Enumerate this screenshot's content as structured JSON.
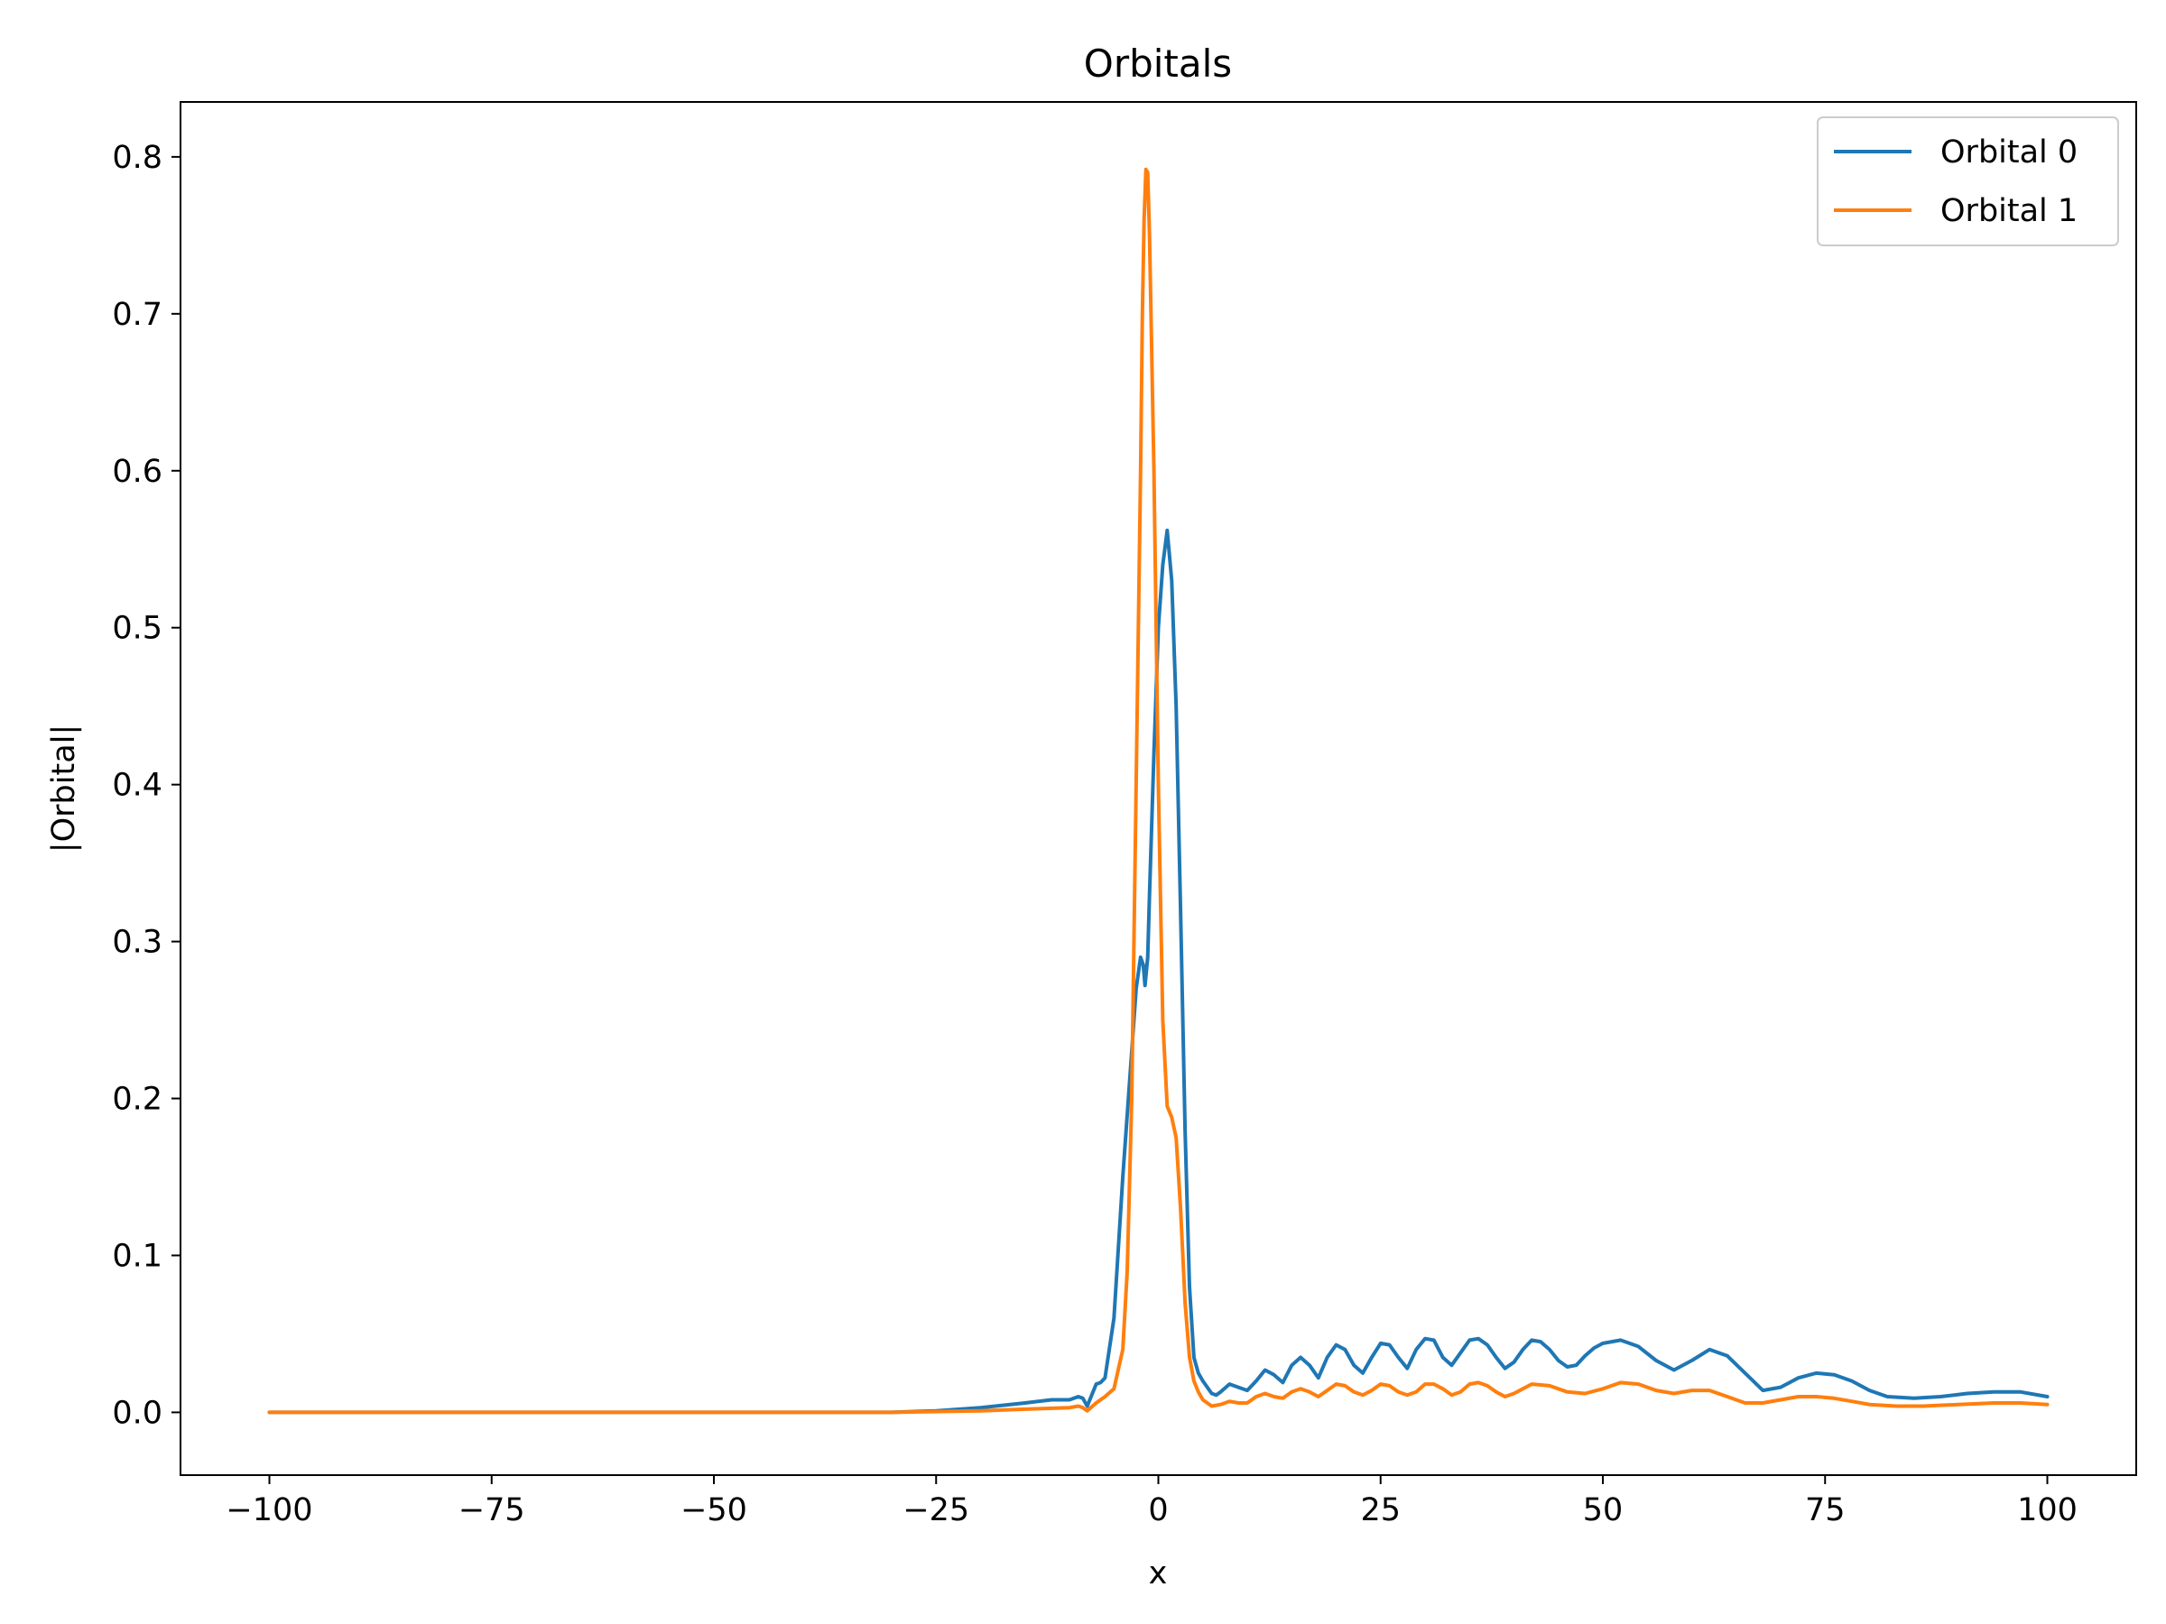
{
  "chart_data": {
    "type": "line",
    "title": "Orbitals",
    "xlabel": "x",
    "ylabel": "|Orbital|",
    "xlim": [
      -110,
      110
    ],
    "ylim": [
      -0.04,
      0.835
    ],
    "xticks": [
      -100,
      -75,
      -50,
      -25,
      0,
      25,
      50,
      75,
      100
    ],
    "xtick_labels": [
      "−100",
      "−75",
      "−50",
      "−25",
      "0",
      "25",
      "50",
      "75",
      "100"
    ],
    "yticks": [
      0.0,
      0.1,
      0.2,
      0.3,
      0.4,
      0.5,
      0.6,
      0.7,
      0.8
    ],
    "ytick_labels": [
      "0.0",
      "0.1",
      "0.2",
      "0.3",
      "0.4",
      "0.5",
      "0.6",
      "0.7",
      "0.8"
    ],
    "grid": false,
    "legend_position": "top-right",
    "series": [
      {
        "name": "Orbital 0",
        "color": "#1f77b4",
        "x": [
          -100,
          -80,
          -60,
          -40,
          -30,
          -25,
          -20,
          -15,
          -12,
          -10,
          -9,
          -8.5,
          -8,
          -7,
          -6.5,
          -6,
          -5,
          -4,
          -3,
          -2.5,
          -2,
          -1.7,
          -1.5,
          -1.2,
          -1,
          -0.5,
          0,
          0.5,
          1,
          1.5,
          2,
          2.5,
          3,
          3.5,
          4,
          4.5,
          5,
          6,
          6.5,
          7,
          8,
          9,
          10,
          11,
          12,
          13,
          14,
          15,
          16,
          17,
          18,
          19,
          20,
          21,
          22,
          23,
          24,
          25,
          26,
          27,
          28,
          29,
          30,
          31,
          32,
          33,
          34,
          35,
          36,
          37,
          38,
          39,
          40,
          41,
          42,
          43,
          44,
          45,
          46,
          47,
          48,
          49,
          50,
          52,
          54,
          56,
          58,
          60,
          62,
          64,
          66,
          68,
          70,
          72,
          74,
          76,
          78,
          80,
          82,
          85,
          88,
          91,
          94,
          97,
          100
        ],
        "y": [
          0.0,
          0.0,
          0.0,
          0.0,
          0.0,
          0.001,
          0.003,
          0.006,
          0.008,
          0.008,
          0.01,
          0.009,
          0.004,
          0.018,
          0.019,
          0.022,
          0.06,
          0.15,
          0.23,
          0.27,
          0.29,
          0.285,
          0.272,
          0.29,
          0.33,
          0.42,
          0.5,
          0.54,
          0.562,
          0.53,
          0.45,
          0.32,
          0.18,
          0.08,
          0.035,
          0.025,
          0.02,
          0.012,
          0.011,
          0.013,
          0.018,
          0.016,
          0.014,
          0.02,
          0.027,
          0.024,
          0.019,
          0.03,
          0.035,
          0.03,
          0.022,
          0.035,
          0.043,
          0.04,
          0.03,
          0.025,
          0.035,
          0.044,
          0.043,
          0.035,
          0.028,
          0.04,
          0.047,
          0.046,
          0.035,
          0.03,
          0.038,
          0.046,
          0.047,
          0.043,
          0.035,
          0.028,
          0.032,
          0.04,
          0.046,
          0.045,
          0.04,
          0.033,
          0.029,
          0.03,
          0.036,
          0.041,
          0.044,
          0.046,
          0.042,
          0.033,
          0.027,
          0.033,
          0.04,
          0.036,
          0.025,
          0.014,
          0.016,
          0.022,
          0.025,
          0.024,
          0.02,
          0.014,
          0.01,
          0.009,
          0.01,
          0.012,
          0.013,
          0.013,
          0.01
        ]
      },
      {
        "name": "Orbital 1",
        "color": "#ff7f0e",
        "x": [
          -100,
          -80,
          -60,
          -40,
          -30,
          -20,
          -15,
          -10,
          -9,
          -8.5,
          -8,
          -7,
          -6,
          -5,
          -4,
          -3.5,
          -3,
          -2.5,
          -2,
          -1.8,
          -1.6,
          -1.4,
          -1.2,
          -1,
          -0.5,
          0,
          0.5,
          1,
          1.5,
          2,
          2.5,
          3,
          3.5,
          4,
          4.5,
          5,
          6,
          7,
          8,
          9,
          10,
          11,
          12,
          13,
          14,
          15,
          16,
          17,
          18,
          19,
          20,
          21,
          22,
          23,
          24,
          25,
          26,
          27,
          28,
          29,
          30,
          31,
          32,
          33,
          34,
          35,
          36,
          37,
          38,
          39,
          40,
          42,
          44,
          46,
          48,
          50,
          52,
          54,
          56,
          58,
          60,
          62,
          64,
          66,
          68,
          70,
          72,
          74,
          76,
          78,
          80,
          83,
          86,
          90,
          94,
          97,
          100
        ],
        "y": [
          0.0,
          0.0,
          0.0,
          0.0,
          0.0,
          0.001,
          0.002,
          0.003,
          0.004,
          0.003,
          0.001,
          0.006,
          0.01,
          0.015,
          0.04,
          0.09,
          0.2,
          0.4,
          0.6,
          0.7,
          0.76,
          0.792,
          0.79,
          0.75,
          0.6,
          0.4,
          0.25,
          0.195,
          0.188,
          0.175,
          0.13,
          0.07,
          0.035,
          0.02,
          0.013,
          0.008,
          0.004,
          0.005,
          0.007,
          0.006,
          0.006,
          0.01,
          0.012,
          0.01,
          0.009,
          0.013,
          0.015,
          0.013,
          0.01,
          0.014,
          0.018,
          0.017,
          0.013,
          0.011,
          0.014,
          0.018,
          0.017,
          0.013,
          0.011,
          0.013,
          0.018,
          0.018,
          0.015,
          0.011,
          0.013,
          0.018,
          0.019,
          0.017,
          0.013,
          0.01,
          0.012,
          0.018,
          0.017,
          0.013,
          0.012,
          0.015,
          0.019,
          0.018,
          0.014,
          0.012,
          0.014,
          0.014,
          0.01,
          0.006,
          0.006,
          0.008,
          0.01,
          0.01,
          0.009,
          0.007,
          0.005,
          0.004,
          0.004,
          0.005,
          0.006,
          0.006,
          0.005
        ]
      }
    ]
  }
}
